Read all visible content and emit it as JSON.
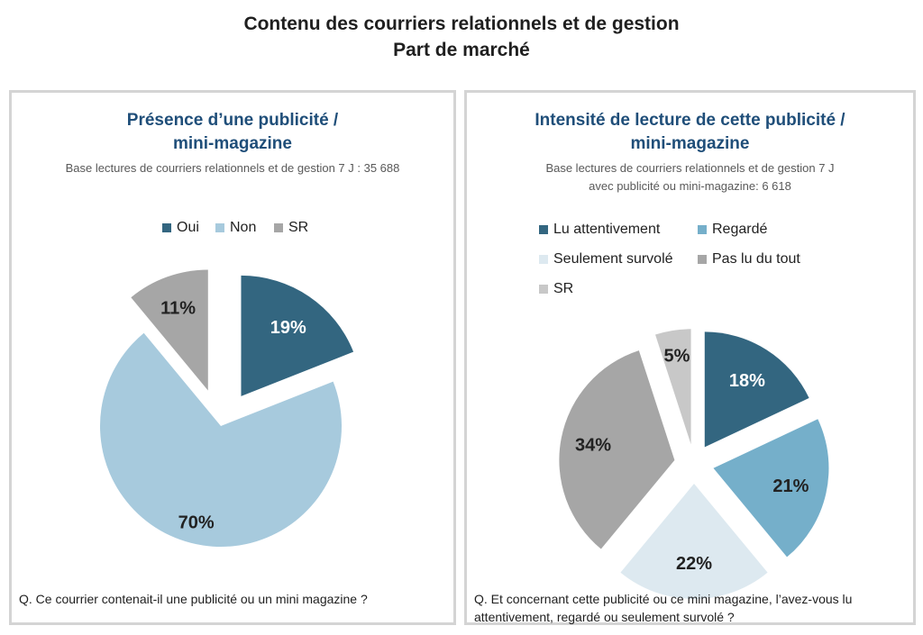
{
  "header": {
    "title_line1": "Contenu des courriers relationnels et de gestion",
    "title_line2": "Part de marché"
  },
  "chart_data": [
    {
      "type": "pie",
      "title_line1": "Présence d’une publicité /",
      "title_line2": "mini-magazine",
      "base": "Base  lectures de courriers relationnels et de gestion 7 J : 35 688",
      "legend": "top",
      "categories": [
        "Oui",
        "Non",
        "SR"
      ],
      "values": [
        19,
        70,
        11
      ],
      "labels": [
        "19%",
        "70%",
        "11%"
      ],
      "colors": [
        "#336680",
        "#a7cadd",
        "#a6a6a6"
      ],
      "label_colors": [
        "#ffffff",
        "#222222",
        "#222222"
      ],
      "question": "Q. Ce courrier contenait-il une publicité ou un mini magazine ?"
    },
    {
      "type": "pie",
      "title_line1": "Intensité de lecture de cette publicité /",
      "title_line2": "mini-magazine",
      "base_line1": "Base  lectures de courriers relationnels et de gestion 7 J",
      "base_line2": "avec publicité ou mini-magazine:  6 618",
      "legend": "top",
      "categories": [
        "Lu attentivement",
        "Regardé",
        "Seulement survolé",
        "Pas lu du tout",
        "SR"
      ],
      "values": [
        18,
        21,
        22,
        34,
        5
      ],
      "labels": [
        "18%",
        "21%",
        "22%",
        "34%",
        "5%"
      ],
      "colors": [
        "#336680",
        "#75afca",
        "#dde9f0",
        "#a6a6a6",
        "#c8c8c8"
      ],
      "label_colors": [
        "#ffffff",
        "#222222",
        "#222222",
        "#222222",
        "#222222"
      ],
      "question_line1": "Q. Et concernant cette publicité ou ce mini magazine, l’avez-vous lu",
      "question_line2": "attentivement, regardé ou seulement survolé ?"
    }
  ]
}
